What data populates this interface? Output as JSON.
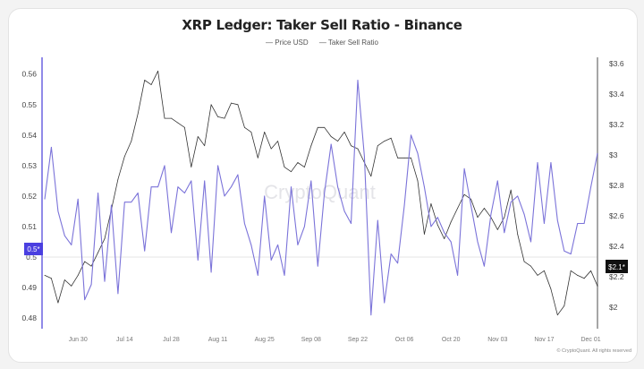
{
  "title": "XRP Ledger: Taker Sell Ratio - Binance",
  "legend": [
    "Price USD",
    "Taker Sell Ratio"
  ],
  "watermark": "CryptoQuant",
  "copyright": "© CryptoQuant. All rights reserved",
  "chart_data": {
    "type": "line",
    "title": "XRP Ledger: Taker Sell Ratio - Binance",
    "x": [
      "2025-06-20",
      "2025-06-22",
      "2025-06-24",
      "2025-06-26",
      "2025-06-28",
      "2025-06-30",
      "2025-07-02",
      "2025-07-04",
      "2025-07-06",
      "2025-07-08",
      "2025-07-10",
      "2025-07-12",
      "2025-07-14",
      "2025-07-16",
      "2025-07-18",
      "2025-07-20",
      "2025-07-22",
      "2025-07-24",
      "2025-07-26",
      "2025-07-28",
      "2025-07-30",
      "2025-08-01",
      "2025-08-03",
      "2025-08-05",
      "2025-08-07",
      "2025-08-09",
      "2025-08-11",
      "2025-08-13",
      "2025-08-15",
      "2025-08-17",
      "2025-08-19",
      "2025-08-21",
      "2025-08-23",
      "2025-08-25",
      "2025-08-27",
      "2025-08-29",
      "2025-08-31",
      "2025-09-02",
      "2025-09-04",
      "2025-09-06",
      "2025-09-08",
      "2025-09-10",
      "2025-09-12",
      "2025-09-14",
      "2025-09-16",
      "2025-09-18",
      "2025-09-20",
      "2025-09-22",
      "2025-09-24",
      "2025-09-26",
      "2025-09-28",
      "2025-09-30",
      "2025-10-02",
      "2025-10-04",
      "2025-10-06",
      "2025-10-08",
      "2025-10-10",
      "2025-10-12",
      "2025-10-14",
      "2025-10-16",
      "2025-10-18",
      "2025-10-20",
      "2025-10-22",
      "2025-10-24",
      "2025-10-26",
      "2025-10-28",
      "2025-10-30",
      "2025-11-01",
      "2025-11-03",
      "2025-11-05",
      "2025-11-07",
      "2025-11-09",
      "2025-11-11",
      "2025-11-13",
      "2025-11-15",
      "2025-11-17",
      "2025-11-19",
      "2025-11-21",
      "2025-11-23",
      "2025-11-25",
      "2025-11-27",
      "2025-11-29",
      "2025-12-01",
      "2025-12-03"
    ],
    "x_tick_labels": [
      "Jun 30",
      "Jul 14",
      "Jul 28",
      "Aug 11",
      "Aug 25",
      "Sep 08",
      "Sep 22",
      "Oct 06",
      "Oct 20",
      "Nov 03",
      "Nov 17",
      "Dec 01"
    ],
    "x_tick_dates": [
      "2025-06-30",
      "2025-07-14",
      "2025-07-28",
      "2025-08-11",
      "2025-08-25",
      "2025-09-08",
      "2025-09-22",
      "2025-10-06",
      "2025-10-20",
      "2025-11-03",
      "2025-11-17",
      "2025-12-01"
    ],
    "y_left": {
      "ticks": [
        0.48,
        0.49,
        0.5,
        0.51,
        0.52,
        0.53,
        0.54,
        0.55,
        0.56
      ],
      "tick_labels": [
        "0.48",
        "0.49",
        "0.5",
        "0.51",
        "0.52",
        "0.53",
        "0.54",
        "0.55",
        "0.56"
      ],
      "range": [
        0.4765,
        0.5655
      ],
      "current_tag": "0.5*"
    },
    "y_right": {
      "ticks": [
        2,
        2.2,
        2.4,
        2.6,
        2.8,
        3,
        3.2,
        3.4,
        3.6
      ],
      "tick_labels": [
        "$2",
        "$2.2",
        "$2.4",
        "$2.6",
        "$2.8",
        "$3",
        "$3.2",
        "$3.4",
        "$3.6"
      ],
      "range": [
        1.86,
        3.64
      ],
      "current_tag": "$2.1*"
    },
    "grid": false,
    "legend_position": "top",
    "series": [
      {
        "name": "Price USD",
        "axis": "right",
        "color": "#333333",
        "values": [
          2.21,
          2.19,
          2.03,
          2.18,
          2.14,
          2.21,
          2.3,
          2.27,
          2.36,
          2.45,
          2.64,
          2.84,
          2.99,
          3.09,
          3.27,
          3.49,
          3.46,
          3.55,
          3.24,
          3.24,
          3.21,
          3.18,
          2.92,
          3.12,
          3.06,
          3.33,
          3.25,
          3.24,
          3.34,
          3.33,
          3.18,
          3.15,
          2.98,
          3.15,
          3.04,
          3.09,
          2.92,
          2.89,
          2.95,
          2.92,
          3.06,
          3.18,
          3.18,
          3.12,
          3.09,
          3.15,
          3.06,
          3.04,
          2.95,
          2.86,
          3.06,
          3.09,
          3.11,
          2.98,
          2.98,
          2.98,
          2.83,
          2.48,
          2.68,
          2.54,
          2.45,
          2.56,
          2.65,
          2.74,
          2.71,
          2.59,
          2.65,
          2.59,
          2.51,
          2.59,
          2.77,
          2.48,
          2.3,
          2.27,
          2.21,
          2.24,
          2.12,
          1.95,
          2.01,
          2.24,
          2.21,
          2.19,
          2.24,
          2.14
        ]
      },
      {
        "name": "Taker Sell Ratio",
        "axis": "left",
        "color": "#7b73d9",
        "values": [
          0.519,
          0.536,
          0.515,
          0.507,
          0.504,
          0.519,
          0.486,
          0.491,
          0.521,
          0.492,
          0.517,
          0.488,
          0.518,
          0.518,
          0.521,
          0.502,
          0.523,
          0.523,
          0.53,
          0.508,
          0.523,
          0.521,
          0.525,
          0.499,
          0.525,
          0.495,
          0.53,
          0.52,
          0.523,
          0.527,
          0.511,
          0.504,
          0.494,
          0.52,
          0.499,
          0.504,
          0.494,
          0.523,
          0.504,
          0.51,
          0.525,
          0.497,
          0.521,
          0.537,
          0.523,
          0.515,
          0.511,
          0.558,
          0.533,
          0.481,
          0.512,
          0.485,
          0.501,
          0.498,
          0.517,
          0.54,
          0.534,
          0.523,
          0.51,
          0.513,
          0.508,
          0.505,
          0.494,
          0.529,
          0.517,
          0.505,
          0.497,
          0.514,
          0.525,
          0.508,
          0.518,
          0.52,
          0.514,
          0.505,
          0.531,
          0.511,
          0.531,
          0.512,
          0.502,
          0.501,
          0.511,
          0.511,
          0.523,
          0.534
        ]
      }
    ]
  }
}
